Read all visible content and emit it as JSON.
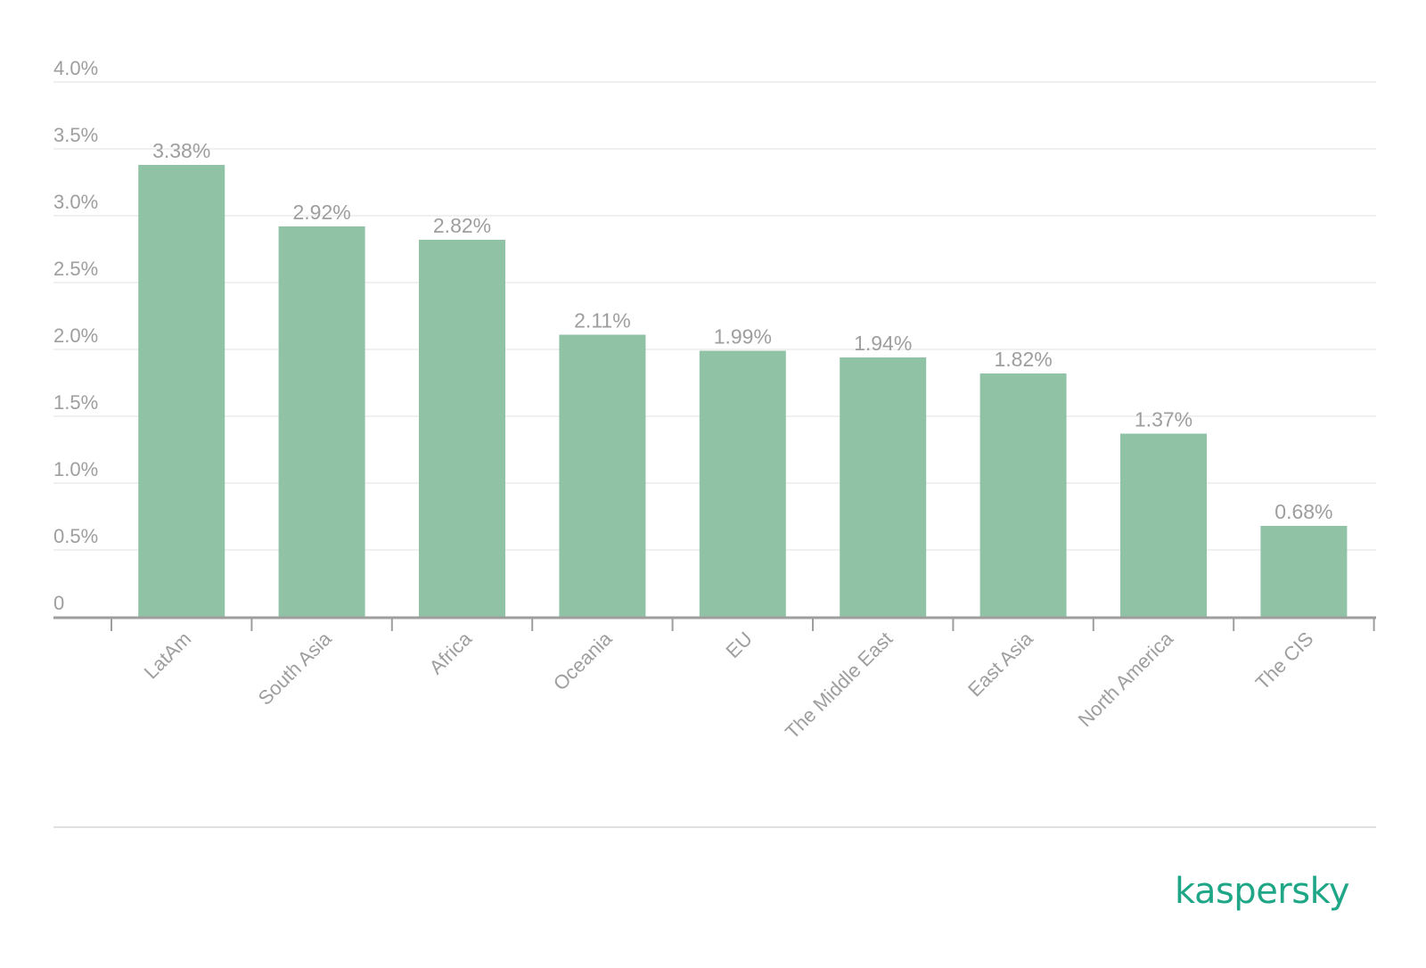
{
  "chart_data": {
    "type": "bar",
    "categories": [
      "LatAm",
      "South Asia",
      "Africa",
      "Oceania",
      "EU",
      "The Middle East",
      "East Asia",
      "North America",
      "The CIS"
    ],
    "values": [
      3.38,
      2.92,
      2.82,
      2.11,
      1.99,
      1.94,
      1.82,
      1.37,
      0.68
    ],
    "value_labels": [
      "3.38%",
      "2.92%",
      "2.82%",
      "2.11%",
      "1.99%",
      "1.94%",
      "1.82%",
      "1.37%",
      "0.68%"
    ],
    "y_ticks": [
      0,
      0.5,
      1.0,
      1.5,
      2.0,
      2.5,
      3.0,
      3.5,
      4.0
    ],
    "y_tick_labels": [
      "0",
      "0.5%",
      "1.0%",
      "1.5%",
      "2.0%",
      "2.5%",
      "3.0%",
      "3.5%",
      "4.0%"
    ],
    "ylim": [
      0,
      4.0
    ],
    "grid": true,
    "legend": "none",
    "colors": {
      "bar": "#90c3a6",
      "text": "#9e9e9e",
      "grid": "#ebebeb",
      "axis": "#9e9e9e",
      "brand": "#1fa687"
    }
  },
  "brand": {
    "name": "kaspersky"
  }
}
